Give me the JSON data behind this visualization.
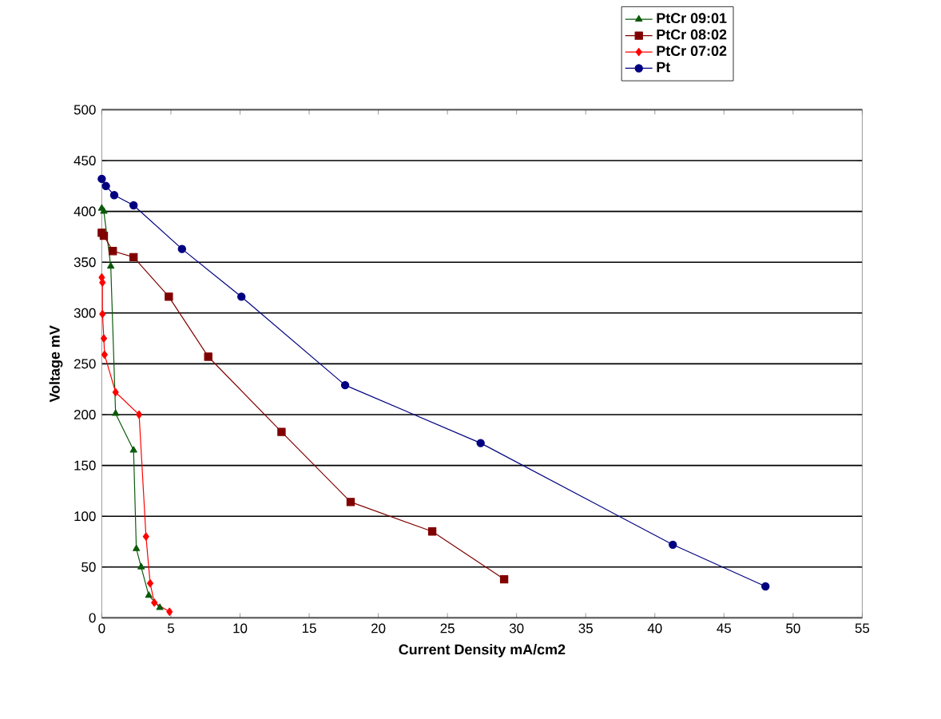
{
  "chart_data": {
    "type": "line",
    "xlabel": "Current Density mA/cm2",
    "ylabel": "Voltage mV",
    "xlim": [
      0,
      55
    ],
    "ylim": [
      0,
      500
    ],
    "xticks": [
      0,
      5,
      10,
      15,
      20,
      25,
      30,
      35,
      40,
      45,
      50,
      55
    ],
    "yticks": [
      0,
      50,
      100,
      150,
      200,
      250,
      300,
      350,
      400,
      450,
      500
    ],
    "grid": "y",
    "legend": "top right",
    "line_style": "solid",
    "series": [
      {
        "name": "PtCr 09:01",
        "color": "#0b5a0b",
        "marker": "triangle",
        "x": [
          0,
          0.15,
          0.65,
          1.0,
          2.3,
          2.5,
          2.85,
          3.4,
          4.2
        ],
        "values": [
          403,
          400,
          346,
          201,
          165,
          68,
          50,
          22,
          10
        ]
      },
      {
        "name": "PtCr 08:02",
        "color": "#800000",
        "marker": "square",
        "x": [
          0,
          0.15,
          0.8,
          2.3,
          4.85,
          7.7,
          13.0,
          18.0,
          23.9,
          29.1
        ],
        "values": [
          379,
          376,
          361,
          355,
          316,
          257,
          183,
          114,
          85,
          38
        ]
      },
      {
        "name": "PtCr 07:02",
        "color": "#ff0000",
        "marker": "diamond",
        "x": [
          0,
          0.05,
          0.05,
          0.15,
          0.2,
          1.0,
          2.7,
          3.2,
          3.5,
          3.8,
          4.9
        ],
        "values": [
          335,
          330,
          299,
          275,
          259,
          222,
          200,
          80,
          34,
          15,
          6
        ]
      },
      {
        "name": "Pt",
        "color": "#000080",
        "marker": "circle",
        "x": [
          0,
          0.3,
          0.9,
          2.3,
          5.8,
          10.1,
          17.6,
          27.4,
          41.3,
          48.0
        ],
        "values": [
          432,
          425,
          416,
          406,
          363,
          316,
          229,
          172,
          72,
          31
        ]
      }
    ]
  }
}
